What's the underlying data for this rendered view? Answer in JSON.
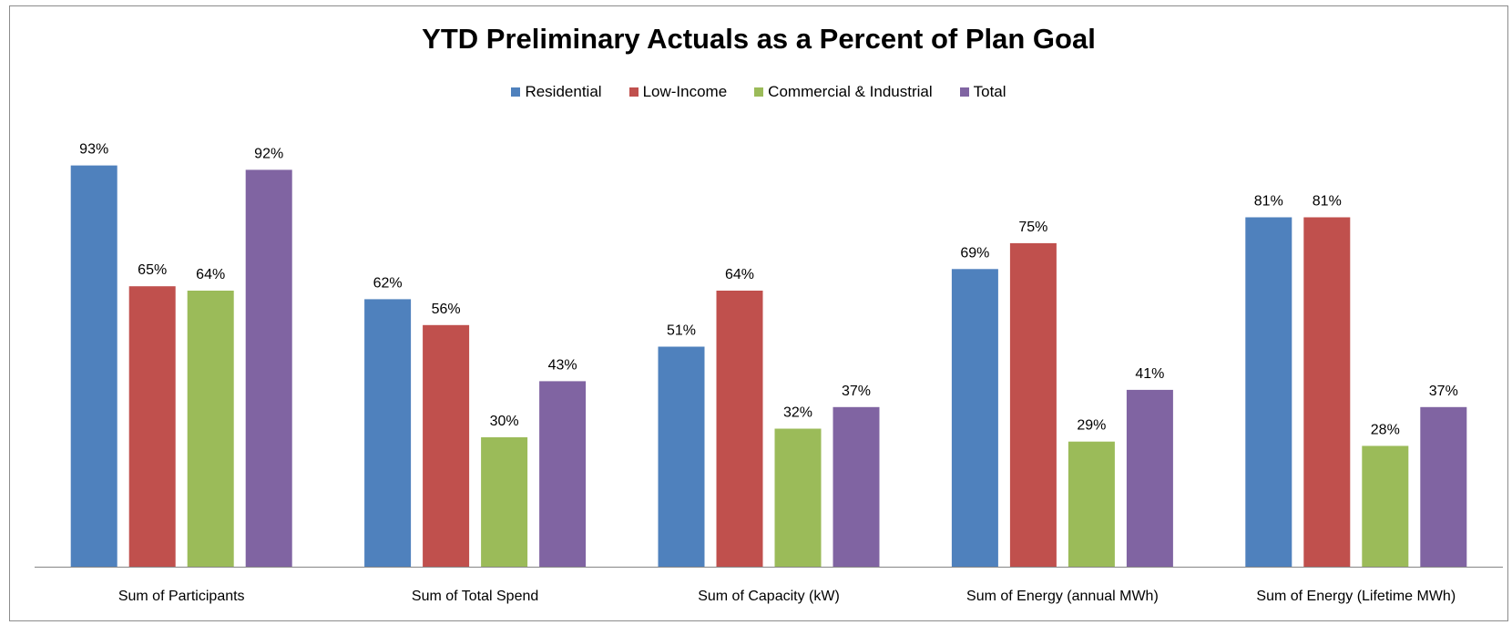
{
  "chart_data": {
    "type": "bar",
    "title": "YTD Preliminary Actuals as a Percent of Plan Goal",
    "categories": [
      "Sum of Participants",
      "Sum of Total Spend",
      "Sum of Capacity (kW)",
      "Sum of Energy (annual MWh)",
      "Sum of Energy (Lifetime MWh)"
    ],
    "series": [
      {
        "name": "Residential",
        "color": "#4f81bd",
        "values": [
          93,
          62,
          51,
          69,
          81
        ]
      },
      {
        "name": "Low-Income",
        "color": "#c0504d",
        "values": [
          65,
          56,
          64,
          75,
          81
        ]
      },
      {
        "name": "Commercial & Industrial",
        "color": "#9bbb59",
        "values": [
          64,
          30,
          32,
          29,
          28
        ]
      },
      {
        "name": "Total",
        "color": "#8064a2",
        "values": [
          92,
          43,
          37,
          41,
          37
        ]
      }
    ],
    "value_suffix": "%",
    "ylim": [
      0,
      100
    ],
    "grid": false,
    "legend_position": "top"
  }
}
